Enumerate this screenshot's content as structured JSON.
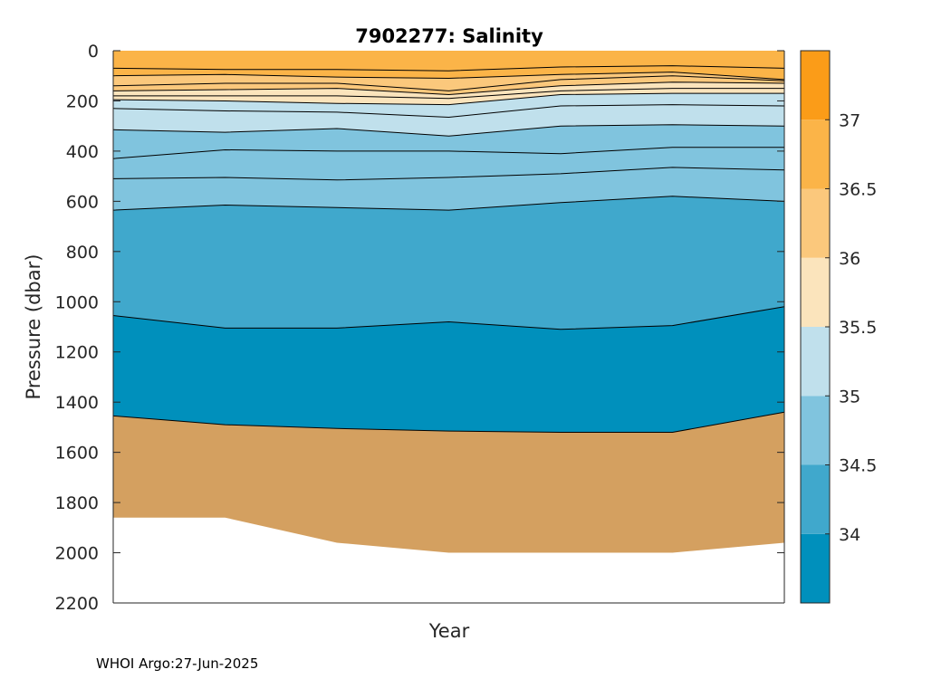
{
  "chart_data": {
    "type": "contour",
    "title": "7902277:  Salinity",
    "xlabel": "Year",
    "ylabel": "Pressure (dbar)",
    "ylim": [
      0,
      2200
    ],
    "y_reversed": true,
    "yticks": [
      0,
      200,
      400,
      600,
      800,
      1000,
      1200,
      1400,
      1600,
      1800,
      2000,
      2200
    ],
    "x_profiles": [
      0,
      1,
      2,
      3,
      4,
      5,
      6
    ],
    "xlim": [
      0,
      6
    ],
    "max_depth": [
      1860,
      1860,
      1960,
      2000,
      2000,
      2000,
      1960
    ],
    "contour_levels": [
      34.5,
      35,
      35.5,
      36,
      36.5,
      37
    ],
    "isolines": [
      {
        "level": "L1",
        "depth": [
          1455,
          1490,
          1505,
          1515,
          1520,
          1520,
          1440
        ]
      },
      {
        "level": "L2",
        "depth": [
          1055,
          1105,
          1105,
          1080,
          1110,
          1095,
          1020
        ]
      },
      {
        "level": "L3",
        "depth": [
          635,
          615,
          625,
          635,
          605,
          580,
          600
        ]
      },
      {
        "level": "L4",
        "depth": [
          510,
          505,
          515,
          505,
          490,
          465,
          475
        ]
      },
      {
        "level": "L5",
        "depth": [
          430,
          395,
          400,
          400,
          410,
          385,
          385
        ]
      },
      {
        "level": "L6",
        "depth": [
          315,
          325,
          310,
          340,
          300,
          295,
          300
        ]
      },
      {
        "level": "L7",
        "depth": [
          230,
          240,
          245,
          265,
          220,
          215,
          220
        ]
      },
      {
        "level": "L8",
        "depth": [
          195,
          200,
          210,
          215,
          175,
          170,
          170
        ]
      },
      {
        "level": "L9",
        "depth": [
          180,
          180,
          180,
          190,
          160,
          150,
          150
        ]
      },
      {
        "level": "L10",
        "depth": [
          160,
          155,
          150,
          175,
          140,
          125,
          130
        ]
      },
      {
        "level": "L11",
        "depth": [
          140,
          130,
          130,
          160,
          115,
          100,
          120
        ]
      },
      {
        "level": "L12",
        "depth": [
          100,
          95,
          105,
          110,
          95,
          85,
          115
        ]
      },
      {
        "level": "L13",
        "depth": [
          70,
          75,
          75,
          80,
          65,
          60,
          70
        ]
      }
    ],
    "band_colors": [
      "#d4a060",
      "#0090bc",
      "#40a8cc",
      "#80c4de",
      "#80c4de",
      "#80c4de",
      "#c0e0ec",
      "#c0e0ec",
      "#fbe4bc",
      "#fbe4bc",
      "#fbc87c",
      "#fbc87c",
      "#fbb448",
      "#fbb448"
    ],
    "colorbar": {
      "range": [
        33.5,
        37.5
      ],
      "ticks": [
        "34",
        "34.5",
        "35",
        "35.5",
        "36",
        "36.5",
        "37"
      ],
      "colors": [
        "#0090bc",
        "#40a8cc",
        "#80c4de",
        "#c0e0ec",
        "#fbe4bc",
        "#fbc87c",
        "#fbb448",
        "#fb9c18"
      ]
    }
  },
  "footer": "WHOI Argo:27-Jun-2025"
}
